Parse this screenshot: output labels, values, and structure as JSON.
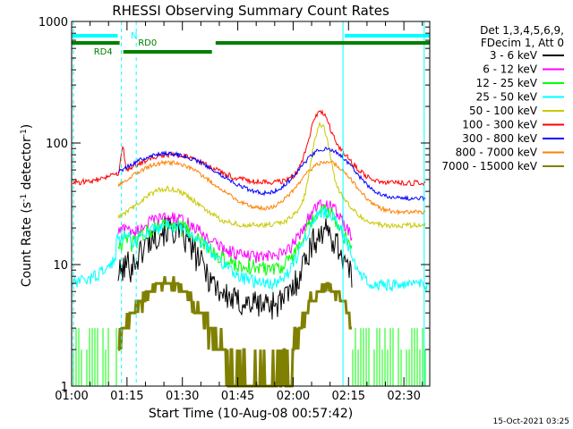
{
  "chart_data": {
    "type": "line",
    "title": "RHESSI Observing Summary Count Rates",
    "xlabel": "Start Time (10-Aug-08 00:57:42)",
    "ylabel_main": "Count Rate (s",
    "ylabel_sup1": "-1",
    "ylabel_mid": " detector",
    "ylabel_sup2": "-1",
    "ylabel_end": ")",
    "yscale": "log",
    "ylim": [
      1,
      1000
    ],
    "xlim_minutes": [
      60,
      157
    ],
    "x_ticks": [
      {
        "t": 60,
        "label": "01:00"
      },
      {
        "t": 75,
        "label": "01:15"
      },
      {
        "t": 90,
        "label": "01:30"
      },
      {
        "t": 105,
        "label": "01:45"
      },
      {
        "t": 120,
        "label": "02:00"
      },
      {
        "t": 135,
        "label": "02:15"
      },
      {
        "t": 150,
        "label": "02:30"
      }
    ],
    "y_ticks": [
      {
        "v": 1,
        "label": "1"
      },
      {
        "v": 10,
        "label": "10"
      },
      {
        "v": 100,
        "label": "100"
      },
      {
        "v": 1000,
        "label": "1000"
      }
    ],
    "legend_header": [
      "Det 1,3,4,5,6,9,",
      "FDecim 1, Att 0"
    ],
    "legend_placement": "right",
    "series": [
      {
        "name": "3 - 6 keV",
        "color": "#000000"
      },
      {
        "name": "6 - 12 keV",
        "color": "#ff00ff"
      },
      {
        "name": "12 - 25 keV",
        "color": "#00ff00"
      },
      {
        "name": "25 - 50 keV",
        "color": "#00ffff"
      },
      {
        "name": "50 - 100 keV",
        "color": "#c8c800"
      },
      {
        "name": "100 - 300 keV",
        "color": "#ff0000"
      },
      {
        "name": "300 - 800 keV",
        "color": "#0000ff"
      },
      {
        "name": "800 - 7000 keV",
        "color": "#ff8000"
      },
      {
        "name": "7000 - 15000 keV",
        "color": "#808000"
      }
    ],
    "status_bars": [
      {
        "label": "N",
        "color": "#00ffff"
      },
      {
        "label": "RD0",
        "color": "#008000"
      },
      {
        "label": "RD4",
        "color": "#008000"
      }
    ],
    "timestamp": "15-Oct-2021 03:25"
  }
}
